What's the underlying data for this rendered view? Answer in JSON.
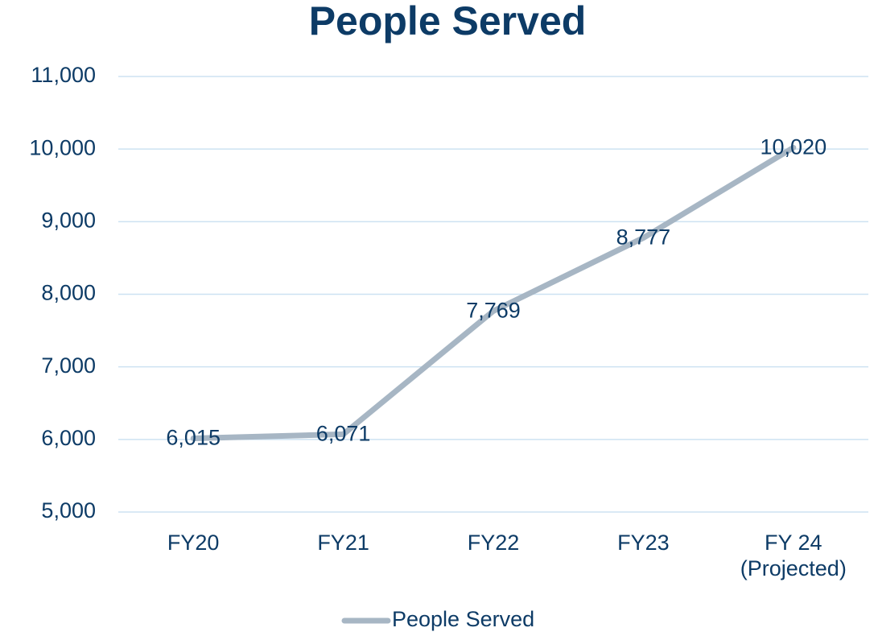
{
  "chart_data": {
    "type": "line",
    "title": "People Served",
    "categories": [
      "FY20",
      "FY21",
      "FY22",
      "FY23",
      "FY 24\n(Projected)"
    ],
    "series": [
      {
        "name": "People Served",
        "color": "#a7b6c4",
        "values": [
          6015,
          6071,
          7769,
          8777,
          10020
        ],
        "value_labels": [
          "6,015",
          "6,071",
          "7,769",
          "8,777",
          "10,020"
        ]
      }
    ],
    "ylim": [
      5000,
      11000
    ],
    "yticks": [
      {
        "value": 5000,
        "label": "5,000"
      },
      {
        "value": 6000,
        "label": "6,000"
      },
      {
        "value": 7000,
        "label": "7,000"
      },
      {
        "value": 8000,
        "label": "8,000"
      },
      {
        "value": 9000,
        "label": "9,000"
      },
      {
        "value": 10000,
        "label": "10,000"
      },
      {
        "value": 11000,
        "label": "11,000"
      }
    ],
    "grid": true,
    "legend": "bottom"
  }
}
